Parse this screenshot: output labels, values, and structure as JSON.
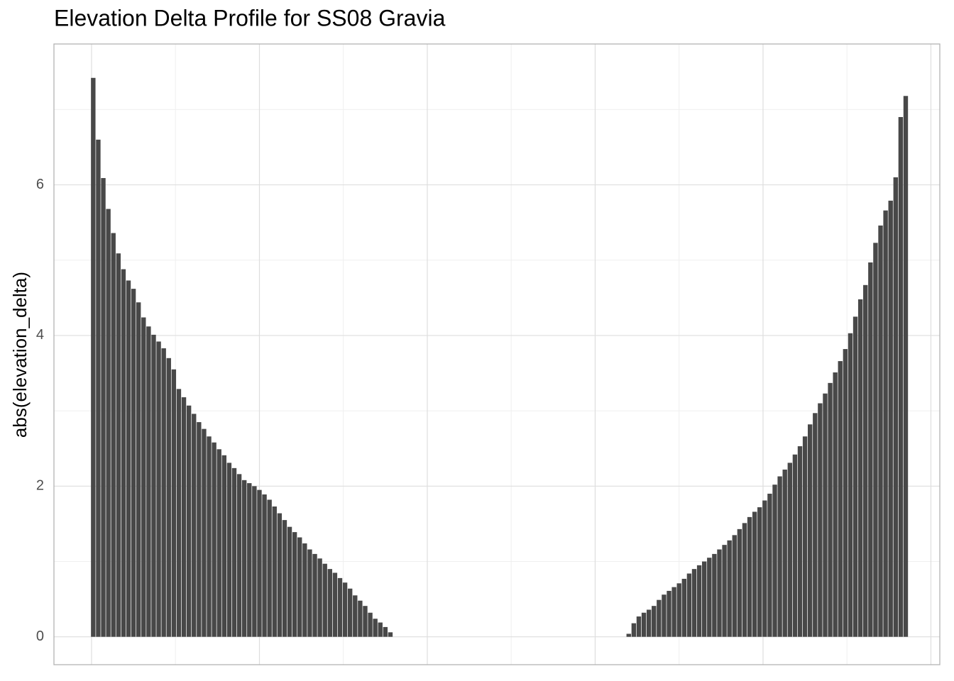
{
  "chart_data": {
    "type": "bar",
    "title": "Elevation Delta Profile for SS08 Gravia",
    "y_label": "abs(elevation_delta)",
    "x": [
      1,
      4,
      7,
      10,
      13,
      16,
      19,
      22,
      25,
      28,
      31,
      34,
      37,
      40,
      43,
      46,
      49,
      52,
      55,
      58,
      61,
      64,
      67,
      70,
      73,
      76,
      79,
      82,
      85,
      88,
      91,
      94,
      97,
      100,
      103,
      106,
      109,
      112,
      115,
      118,
      121,
      124,
      127,
      130,
      133,
      136,
      139,
      142,
      145,
      148,
      151,
      154,
      157,
      160,
      163,
      166,
      169,
      172,
      175,
      178,
      320,
      323,
      326,
      329,
      332,
      335,
      338,
      341,
      344,
      347,
      350,
      353,
      356,
      359,
      362,
      365,
      368,
      371,
      374,
      377,
      380,
      383,
      386,
      389,
      392,
      395,
      398,
      401,
      404,
      407,
      410,
      413,
      416,
      419,
      422,
      425,
      428,
      431,
      434,
      437,
      440,
      443,
      446,
      449,
      452,
      455,
      458,
      461,
      464,
      467,
      470,
      473,
      476,
      479,
      482,
      485
    ],
    "values": [
      7.42,
      6.6,
      6.09,
      5.68,
      5.36,
      5.09,
      4.88,
      4.73,
      4.62,
      4.44,
      4.24,
      4.12,
      4.01,
      3.92,
      3.83,
      3.7,
      3.55,
      3.29,
      3.18,
      3.07,
      2.96,
      2.85,
      2.76,
      2.66,
      2.58,
      2.49,
      2.41,
      2.31,
      2.24,
      2.16,
      2.08,
      2.04,
      2.0,
      1.95,
      1.89,
      1.82,
      1.73,
      1.64,
      1.55,
      1.46,
      1.39,
      1.32,
      1.24,
      1.16,
      1.1,
      1.04,
      0.97,
      0.9,
      0.85,
      0.78,
      0.72,
      0.64,
      0.55,
      0.48,
      0.41,
      0.32,
      0.24,
      0.19,
      0.13,
      0.06,
      0.04,
      0.18,
      0.27,
      0.32,
      0.36,
      0.41,
      0.49,
      0.56,
      0.61,
      0.66,
      0.71,
      0.77,
      0.84,
      0.9,
      0.95,
      1.0,
      1.05,
      1.1,
      1.16,
      1.22,
      1.28,
      1.35,
      1.43,
      1.51,
      1.59,
      1.66,
      1.72,
      1.81,
      1.9,
      2.02,
      2.13,
      2.22,
      2.31,
      2.42,
      2.53,
      2.66,
      2.82,
      2.97,
      3.1,
      3.23,
      3.37,
      3.51,
      3.66,
      3.82,
      4.03,
      4.25,
      4.48,
      4.67,
      4.97,
      5.23,
      5.46,
      5.66,
      5.79,
      6.1,
      6.9,
      7.18
    ],
    "color": "#484848",
    "xlim": [
      -22.4,
      505.3
    ],
    "xticks": [
      0,
      100,
      200,
      300,
      400,
      500
    ],
    "ylim": [
      -0.37,
      7.87
    ],
    "yticks": [
      0,
      2,
      4,
      6
    ],
    "grid": true
  }
}
